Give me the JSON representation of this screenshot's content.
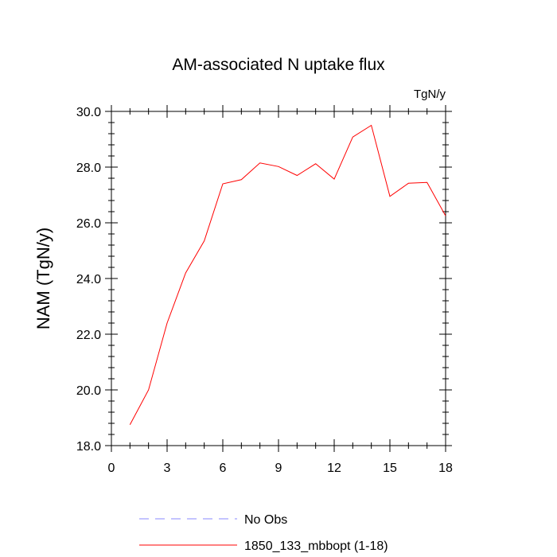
{
  "chart_data": {
    "type": "line",
    "title": "AM-associated N uptake flux",
    "units": "TgN/y",
    "xlabel": "",
    "ylabel": "NAM  (TgN/y)",
    "xlim": [
      0,
      18
    ],
    "ylim": [
      18.0,
      30.0
    ],
    "x_ticks": [
      0,
      3,
      6,
      9,
      12,
      15,
      18
    ],
    "x_tick_labels": [
      "0",
      "3",
      "6",
      "9",
      "12",
      "15",
      "18"
    ],
    "y_ticks": [
      18.0,
      20.0,
      22.0,
      24.0,
      26.0,
      28.0,
      30.0
    ],
    "y_tick_labels": [
      "18.0",
      "20.0",
      "22.0",
      "24.0",
      "26.0",
      "28.0",
      "30.0"
    ],
    "grid": false,
    "legend_position": "bottom",
    "series": [
      {
        "name": "1850_133_mbbopt (1-18)",
        "color": "#ff0000",
        "style": "solid",
        "x": [
          1,
          2,
          3,
          4,
          5,
          6,
          7,
          8,
          9,
          10,
          11,
          12,
          13,
          14,
          15,
          16,
          17,
          18
        ],
        "values": [
          18.75,
          20.0,
          22.4,
          24.2,
          25.35,
          27.4,
          27.55,
          28.15,
          28.02,
          27.7,
          28.12,
          27.57,
          29.08,
          29.5,
          26.95,
          27.42,
          27.45,
          26.25
        ]
      }
    ],
    "legend": [
      {
        "label": "No Obs",
        "color": "#8888ff",
        "style": "dashed"
      },
      {
        "label": "1850_133_mbbopt (1-18)",
        "color": "#ff0000",
        "style": "solid"
      }
    ]
  }
}
